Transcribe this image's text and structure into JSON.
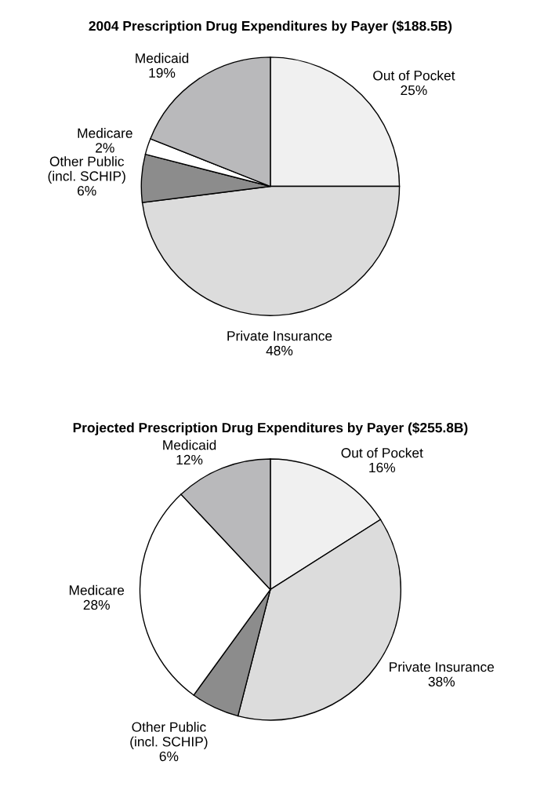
{
  "chart_data": [
    {
      "type": "pie",
      "title": "2004 Prescription Drug Expenditures by Payer ($188.5B)",
      "categories": [
        "Out of Pocket",
        "Private Insurance",
        "Other Public\n(incl. SCHIP)",
        "Medicare",
        "Medicaid"
      ],
      "values": [
        25,
        48,
        6,
        2,
        19
      ],
      "value_labels": [
        "25%",
        "48%",
        "6%",
        "2%",
        "19%"
      ],
      "colors": [
        "#f0f0f0",
        "#dcdcdc",
        "#8c8c8c",
        "#ffffff",
        "#b9b9bb"
      ]
    },
    {
      "type": "pie",
      "title": "Projected Prescription Drug Expenditures by Payer ($255.8B)",
      "categories": [
        "Out of Pocket",
        "Private Insurance",
        "Other Public\n(incl. SCHIP)",
        "Medicare",
        "Medicaid"
      ],
      "values": [
        16,
        38,
        6,
        28,
        12
      ],
      "value_labels": [
        "16%",
        "38%",
        "6%",
        "28%",
        "12%"
      ],
      "colors": [
        "#f0f0f0",
        "#dcdcdc",
        "#8c8c8c",
        "#ffffff",
        "#b9b9bb"
      ]
    }
  ]
}
